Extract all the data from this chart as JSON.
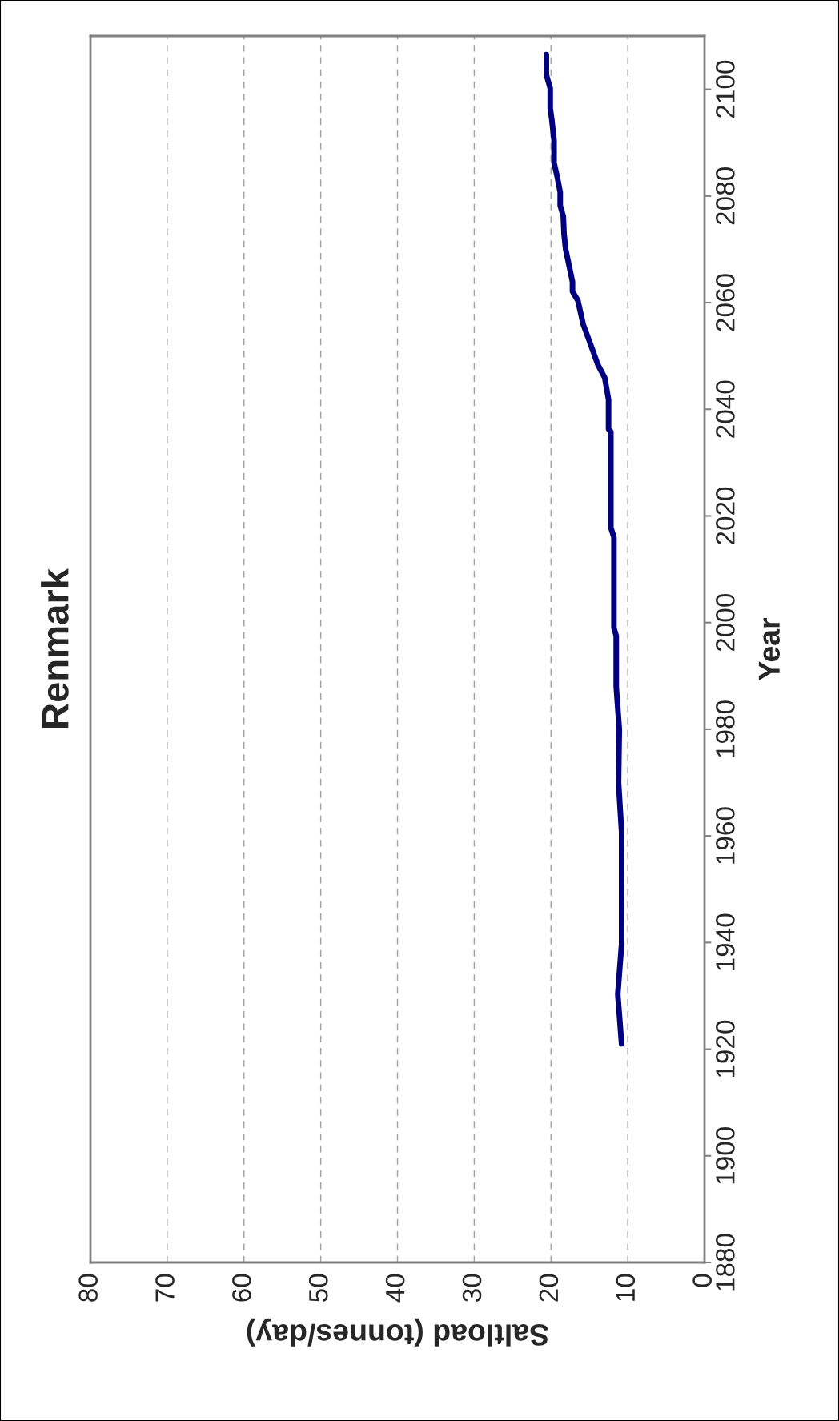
{
  "chart_data": {
    "type": "line",
    "title": "Renmark",
    "xlabel": "Saltload (tonnes/day)",
    "ylabel": "Year",
    "x": [
      10.8,
      11.3,
      10.8,
      10.8,
      11.2,
      11.1,
      11.5,
      11.5,
      11.8,
      11.8,
      12.2,
      12.2,
      12.5,
      12.5,
      13.0,
      13.9,
      14.9,
      15.8,
      16.5,
      17.2,
      17.2,
      18.1,
      18.3,
      18.4,
      18.8,
      18.8,
      19.2,
      19.6,
      19.6,
      19.9,
      20.1,
      20.1,
      20.6,
      20.6
    ],
    "series": [
      {
        "color": "#000080",
        "values": [
          1921.0,
          1930.3,
          1939.7,
          1960.7,
          1970.0,
          1980.0,
          1988.0,
          1997.5,
          1999.0,
          2016.0,
          2017.8,
          2035.8,
          2036.3,
          2041.8,
          2045.9,
          2048.4,
          2052.4,
          2055.9,
          2060.4,
          2062.1,
          2063.9,
          2070.1,
          2072.9,
          2076.2,
          2078.2,
          2080.7,
          2083.7,
          2086.2,
          2090.4,
          2094.4,
          2096.4,
          2100.2,
          2102.7,
          2106.5
        ]
      }
    ],
    "xlim": [
      80,
      0
    ],
    "xticks": [
      80,
      70,
      60,
      50,
      40,
      30,
      20,
      10,
      0
    ],
    "ylim": [
      1880,
      2110
    ],
    "yticks": [
      1880,
      1900,
      1920,
      1940,
      1960,
      1980,
      2000,
      2020,
      2040,
      2060,
      2080,
      2100
    ],
    "grid": "x",
    "legend": false,
    "marker": "none",
    "line_style": "solid"
  }
}
